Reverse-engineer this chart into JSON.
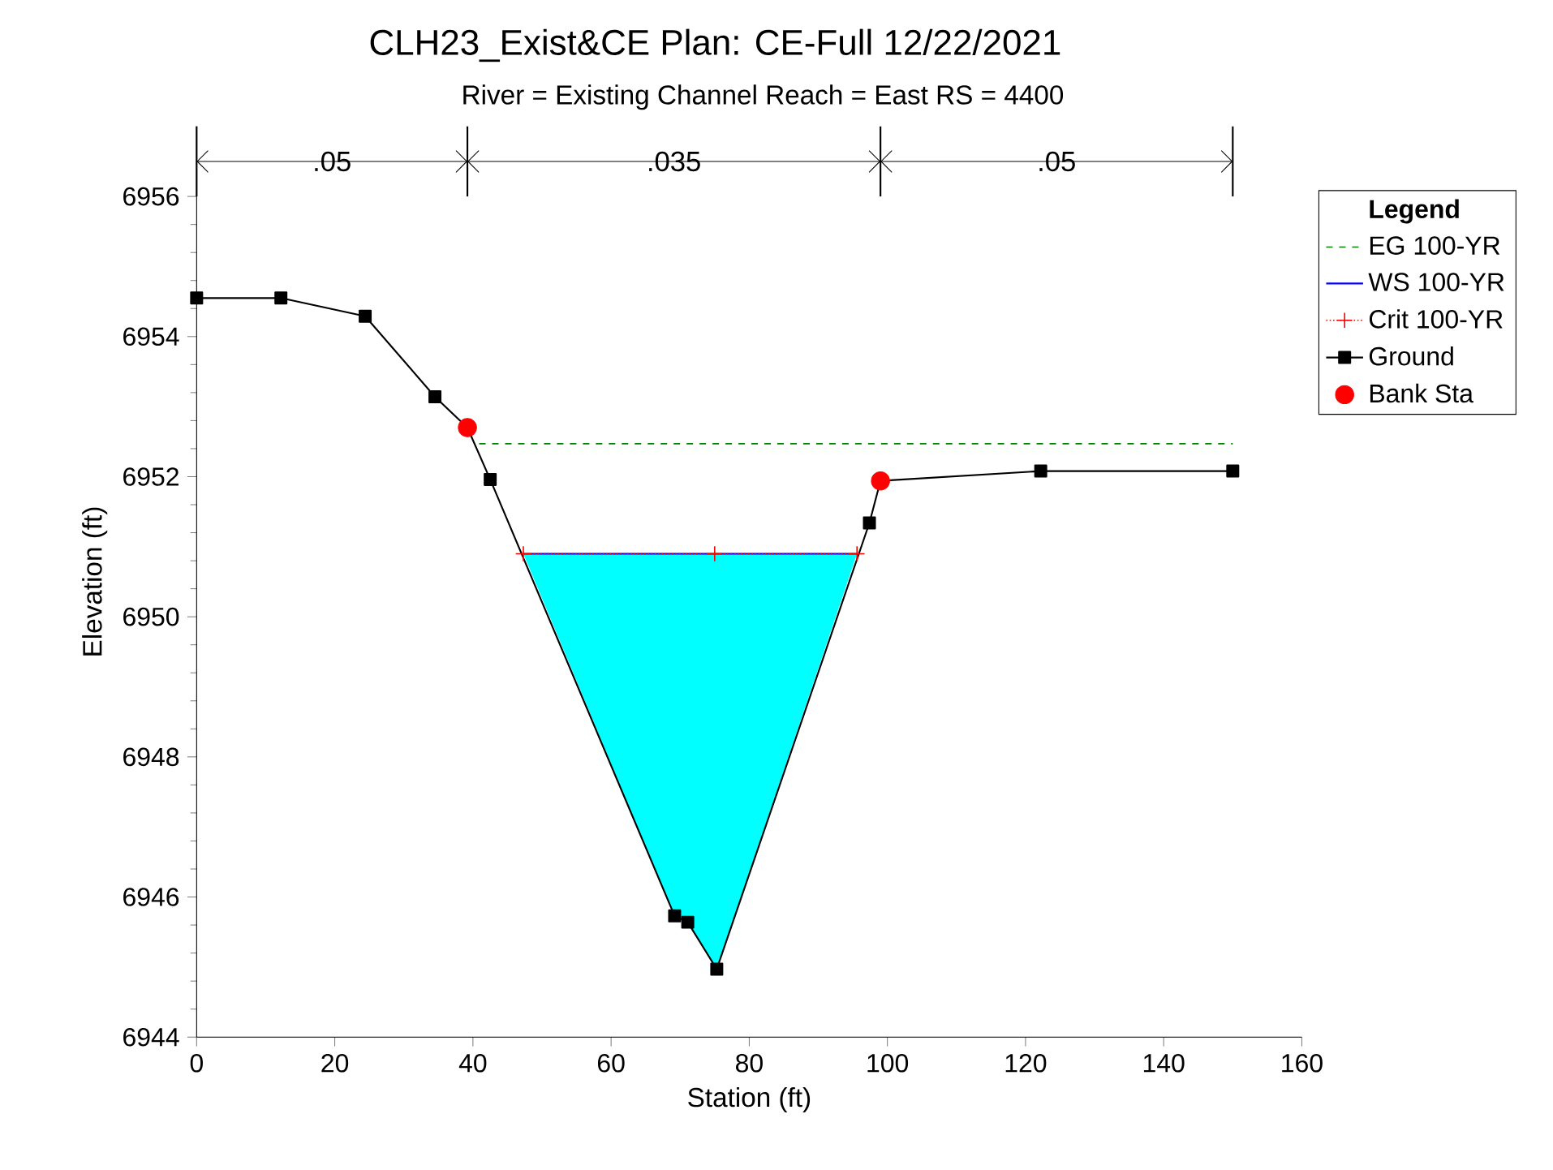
{
  "chart_data": {
    "type": "line",
    "title": "CLH23_Exist&CE       Plan: CE-Full       12/22/2021",
    "subtitle": "River = Existing Channel    Reach = East       RS = 4400",
    "xlabel": "Station (ft)",
    "ylabel": "Elevation (ft)",
    "legend_title": "Legend",
    "xlim": [
      0,
      160
    ],
    "xticks": [
      0,
      20,
      40,
      60,
      80,
      100,
      120,
      140,
      160
    ],
    "ylim": [
      6944,
      6957
    ],
    "yticks": [
      6944,
      6946,
      6948,
      6950,
      6952,
      6954,
      6956
    ],
    "grid": false,
    "legend": "right",
    "annotations": [
      {
        "text": ".05",
        "x": 19.6,
        "y": 6956.5
      },
      {
        "text": ".035",
        "x": 69.1,
        "y": 6956.5
      },
      {
        "text": ".05",
        "x": 124.5,
        "y": 6956.5
      }
    ],
    "series": [
      {
        "name": "EG 100-YR",
        "color": "#008000",
        "line_style": "dashed",
        "marker": "none",
        "x": [
          40.9,
          150
        ],
        "values": [
          6952.47,
          6952.47
        ]
      },
      {
        "name": "WS 100-YR",
        "color": "#0000ff",
        "line_style": "solid",
        "marker": "none",
        "x": [
          47.3,
          69.2,
          71.1,
          75.3,
          95.6
        ],
        "values": [
          6950.9,
          6950.9,
          6950.9,
          6950.9,
          6950.9
        ],
        "lower": [
          6950.9,
          6945.73,
          6945.64,
          6944.97,
          6950.9
        ],
        "upper": [
          6950.9,
          6950.9,
          6950.9,
          6950.9,
          6950.9
        ]
      },
      {
        "name": "Crit 100-YR",
        "color": "#ff0000",
        "line_style": "dotted",
        "marker": "cross",
        "x": [
          47.3,
          75,
          95.6
        ],
        "values": [
          6950.9,
          6950.9,
          6950.9
        ]
      },
      {
        "name": "Ground",
        "color": "#000000",
        "line_style": "solid",
        "marker": "square",
        "x": [
          0,
          12.2,
          24.4,
          34.5,
          39.2,
          42.5,
          69.2,
          71.1,
          75.3,
          97.4,
          99.0,
          122.2,
          150
        ],
        "values": [
          6954.55,
          6954.55,
          6954.29,
          6953.14,
          6952.7,
          6951.96,
          6945.73,
          6945.64,
          6944.97,
          6951.34,
          6951.94,
          6952.08,
          6952.08
        ]
      },
      {
        "name": "Bank Sta",
        "type": "scatter",
        "color": "#ff0000",
        "marker": "circle",
        "x": [
          39.2,
          99.0
        ],
        "values": [
          6952.7,
          6951.94
        ]
      }
    ]
  }
}
